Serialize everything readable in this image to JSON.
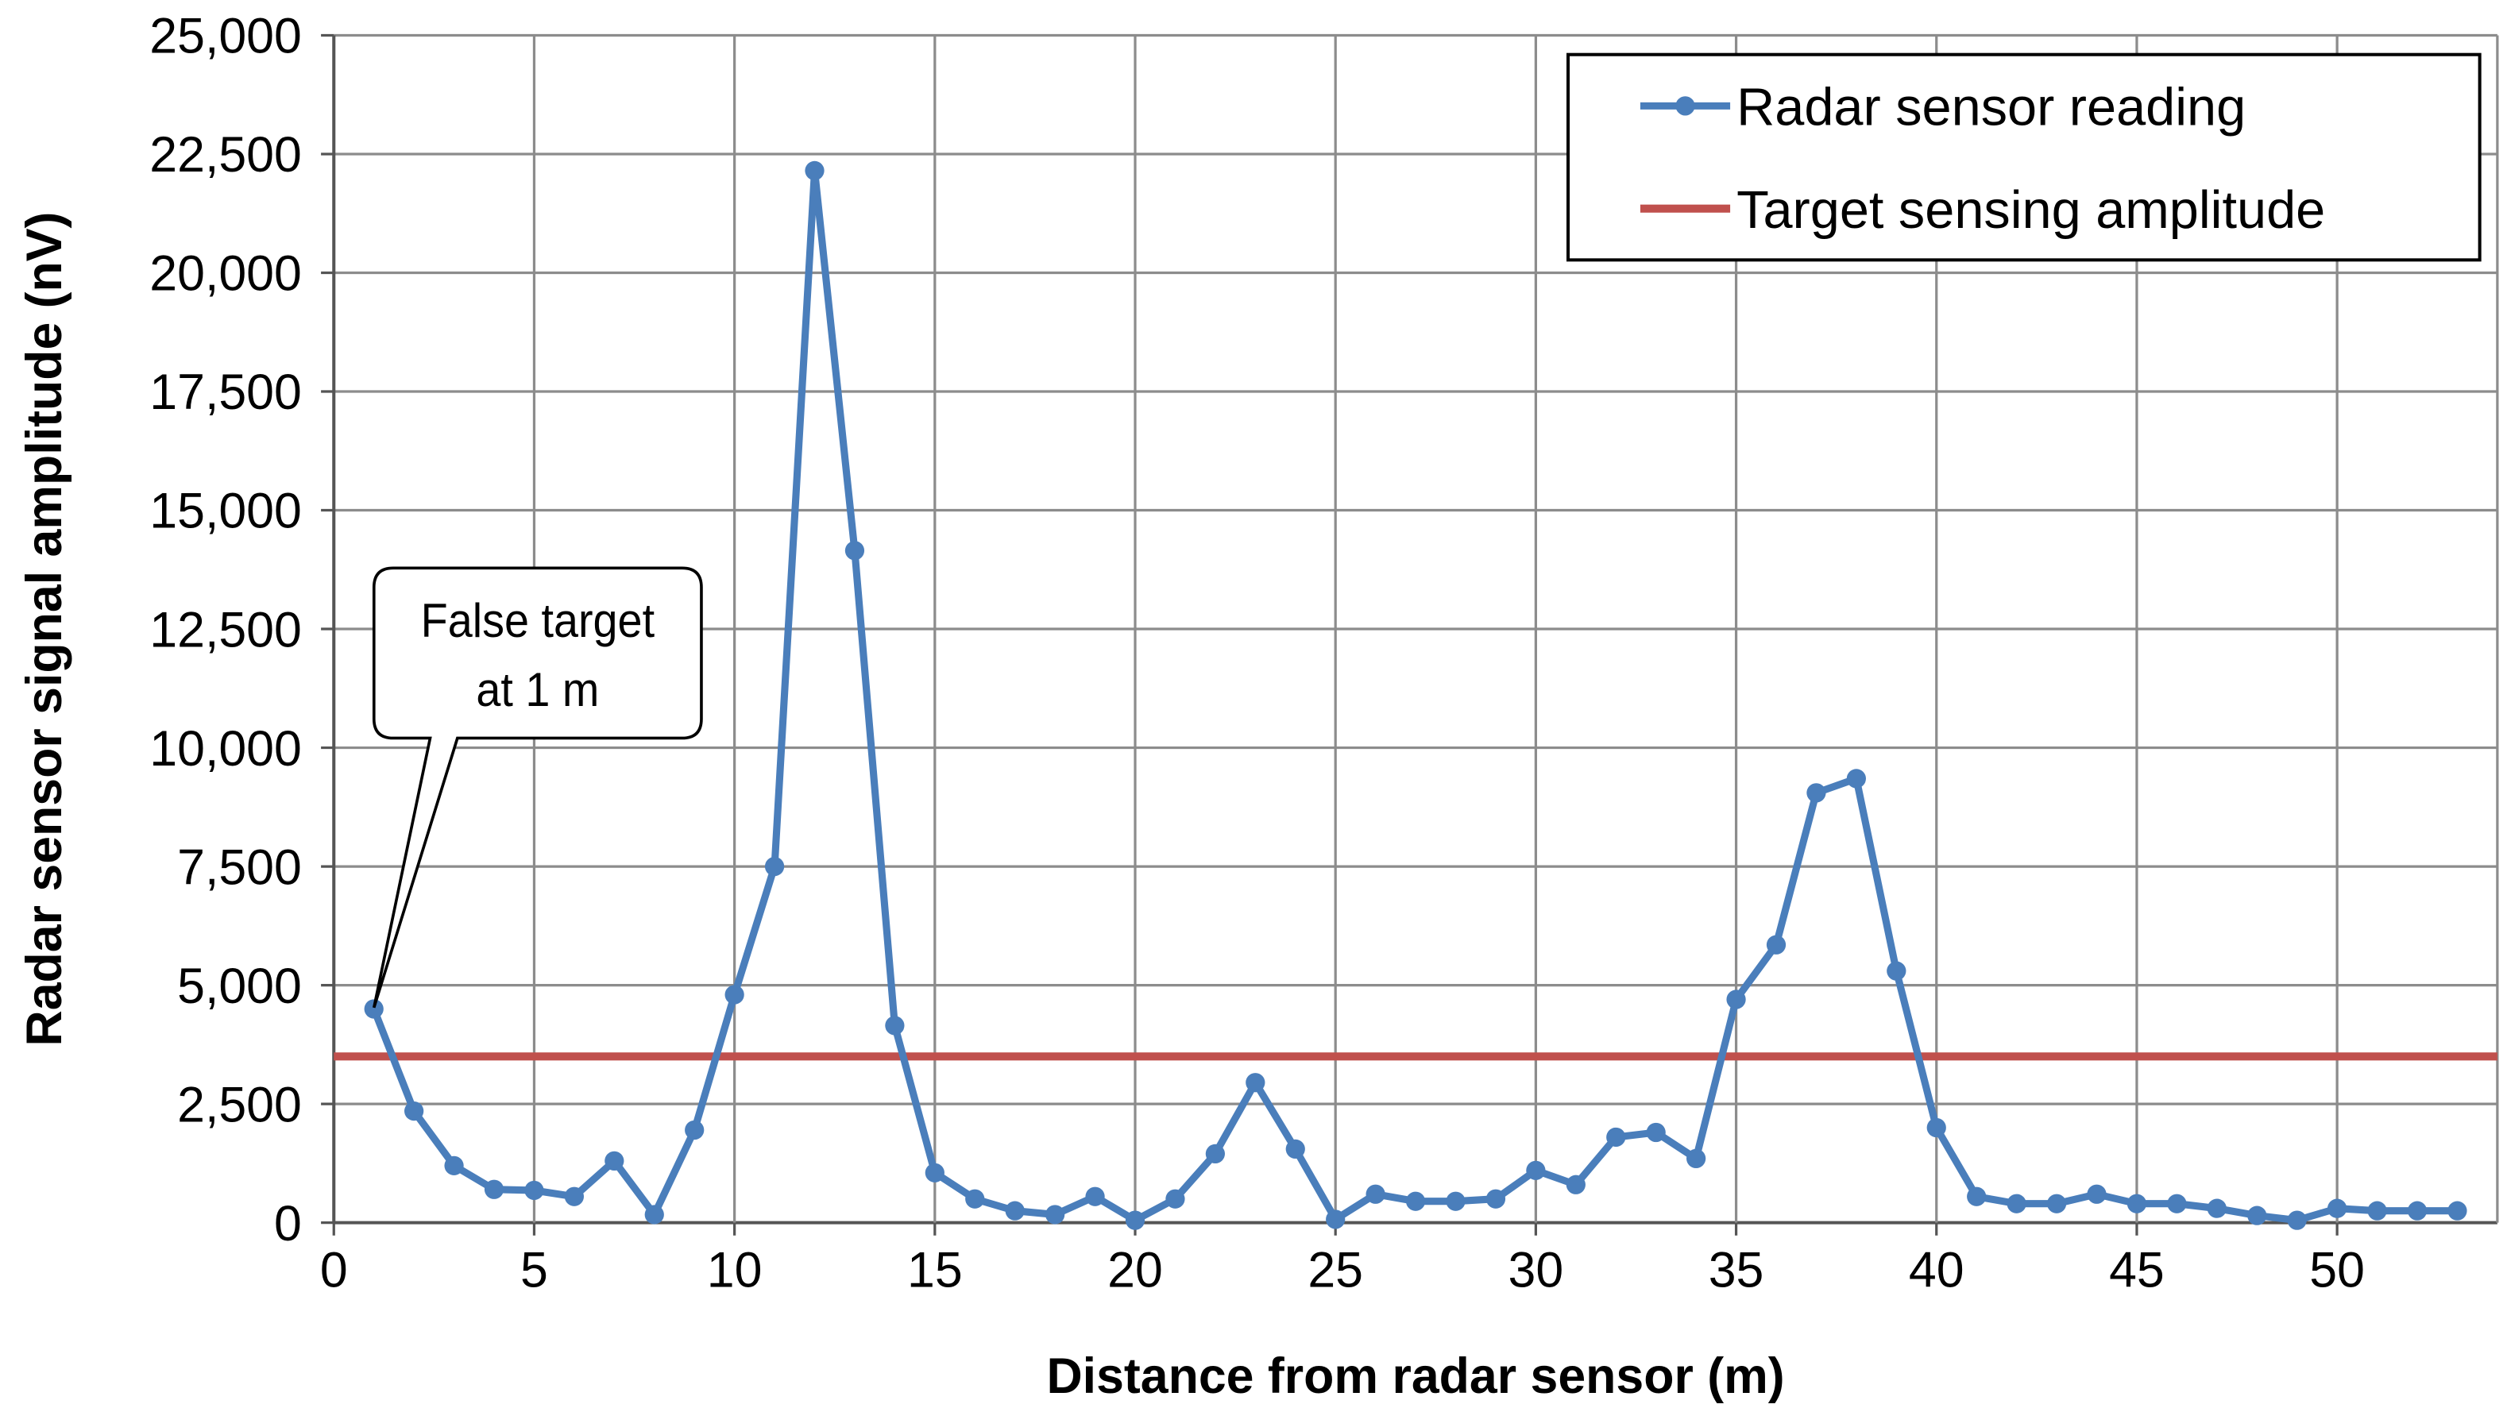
{
  "chart_data": {
    "type": "line",
    "title": "",
    "xlabel": "Distance from radar sensor (m)",
    "ylabel": "Radar sensor signal amplitude (nV)",
    "xlim": [
      0,
      54
    ],
    "ylim": [
      0,
      25000
    ],
    "xticks": [
      0,
      5,
      10,
      15,
      20,
      25,
      30,
      35,
      40,
      45,
      50
    ],
    "yticks": [
      0,
      2500,
      5000,
      7500,
      10000,
      12500,
      15000,
      17500,
      20000,
      22500,
      25000
    ],
    "ytick_labels": [
      "0",
      "2,500",
      "5,000",
      "7,500",
      "10,000",
      "12,500",
      "15,000",
      "17,500",
      "20,000",
      "22,500",
      "25,000"
    ],
    "grid": true,
    "legend_position": "top-right",
    "series": [
      {
        "name": "Radar sensor reading",
        "color": "#4a7ebb",
        "marker": "circle",
        "x": [
          1,
          2,
          3,
          4,
          5,
          6,
          7,
          8,
          9,
          10,
          11,
          12,
          13,
          14,
          15,
          16,
          17,
          18,
          19,
          20,
          21,
          22,
          23,
          24,
          25,
          26,
          27,
          28,
          29,
          30,
          31,
          32,
          33,
          34,
          35,
          36,
          37,
          38,
          39,
          40,
          41,
          42,
          43,
          44,
          45,
          46,
          47,
          48,
          49,
          50,
          51,
          52,
          53
        ],
        "values": [
          4500,
          2350,
          1200,
          700,
          680,
          550,
          1300,
          170,
          1950,
          4800,
          7500,
          22150,
          14150,
          4150,
          1050,
          500,
          250,
          170,
          550,
          50,
          500,
          1450,
          2950,
          1550,
          70,
          600,
          450,
          450,
          500,
          1100,
          800,
          1800,
          1900,
          1350,
          4700,
          5850,
          9050,
          9350,
          5300,
          2000,
          550,
          400,
          400,
          600,
          400,
          400,
          300,
          150,
          50,
          300,
          250,
          250,
          250
        ]
      },
      {
        "name": "Target sensing amplitude",
        "color": "#c0504d",
        "marker": "none",
        "constant": 3500
      }
    ],
    "annotations": [
      {
        "line1": "False target",
        "line2": "at 1 m",
        "x": 1,
        "y": 4500
      }
    ]
  }
}
